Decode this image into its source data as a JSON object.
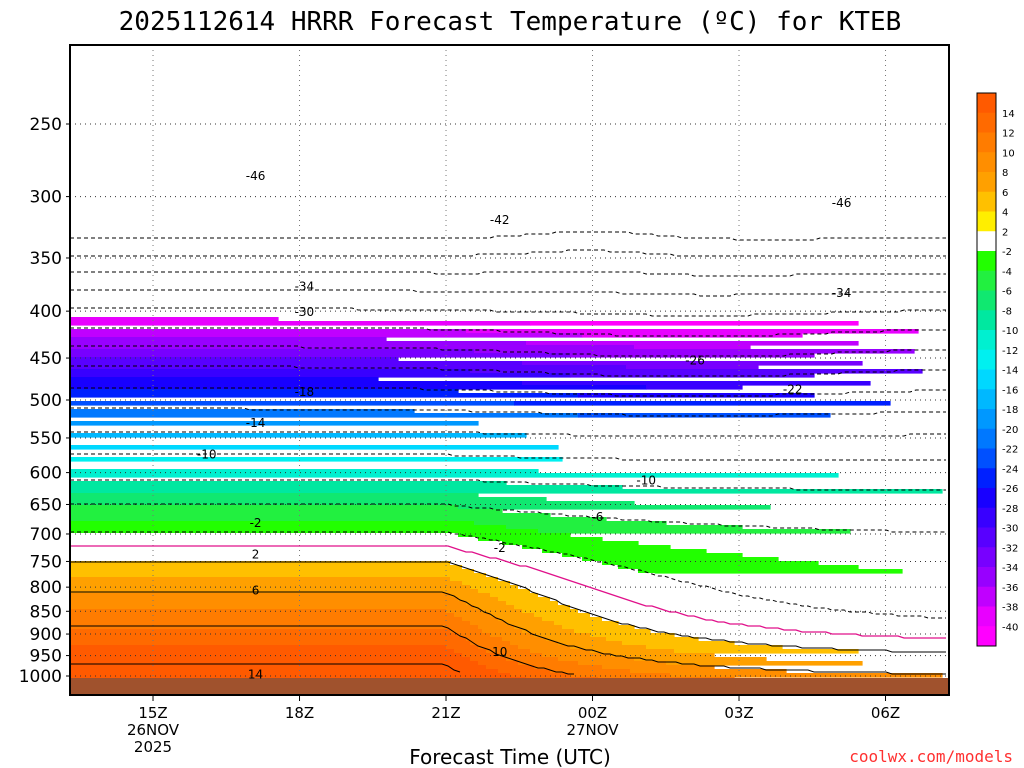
{
  "chart_data": {
    "type": "heatmap",
    "title": "2025112614 HRRR Forecast Temperature (ºC) for KTEB",
    "xlabel": "Forecast Time (UTC)",
    "ylabel": "",
    "credit": "coolwx.com/models",
    "y_ticks": [
      "250",
      "300",
      "350",
      "400",
      "450",
      "500",
      "550",
      "600",
      "650",
      "700",
      "750",
      "800",
      "850",
      "900",
      "950",
      "1000"
    ],
    "y_tick_values": [
      250,
      300,
      350,
      400,
      450,
      500,
      550,
      600,
      650,
      700,
      750,
      800,
      850,
      900,
      950,
      1000
    ],
    "x_ticks": [
      {
        "hour": 15,
        "label": "15Z",
        "sub1": "26NOV",
        "sub2": "2025"
      },
      {
        "hour": 18,
        "label": "18Z",
        "sub1": "",
        "sub2": ""
      },
      {
        "hour": 21,
        "label": "21Z",
        "sub1": "",
        "sub2": ""
      },
      {
        "hour": 24,
        "label": "00Z",
        "sub1": "27NOV",
        "sub2": ""
      },
      {
        "hour": 27,
        "label": "03Z",
        "sub1": "",
        "sub2": ""
      },
      {
        "hour": 30,
        "label": "06Z",
        "sub1": "",
        "sub2": ""
      }
    ],
    "colorbar_ticks": [
      "14",
      "12",
      "10",
      "8",
      "6",
      "4",
      "2",
      "-2",
      "-4",
      "-6",
      "-8",
      "-10",
      "-12",
      "-14",
      "-16",
      "-18",
      "-20",
      "-22",
      "-24",
      "-26",
      "-28",
      "-30",
      "-32",
      "-34",
      "-36",
      "-38",
      "-40"
    ],
    "colorbar_colors": [
      "#ff5a00",
      "#ff6a00",
      "#ff7c00",
      "#ff8e00",
      "#ffa000",
      "#ffc000",
      "#ffee00",
      "#ffffff",
      "#22ff00",
      "#22f040",
      "#10e870",
      "#00e8a0",
      "#00f0d0",
      "#00f0f0",
      "#00d8ff",
      "#00b8ff",
      "#0098ff",
      "#0078ff",
      "#0050ff",
      "#0020ff",
      "#1800ff",
      "#3800ff",
      "#5800ff",
      "#7800ff",
      "#9800ff",
      "#c000ff",
      "#e800ff",
      "#ff00ff"
    ],
    "contour_labels": [
      {
        "text": "-46",
        "hour": 17.1,
        "pres": 285
      },
      {
        "text": "-42",
        "hour": 22.1,
        "pres": 318
      },
      {
        "text": "-46",
        "hour": 29.1,
        "pres": 305
      },
      {
        "text": "-34",
        "hour": 18.1,
        "pres": 376
      },
      {
        "text": "-34",
        "hour": 29.1,
        "pres": 382
      },
      {
        "text": "-30",
        "hour": 18.1,
        "pres": 401
      },
      {
        "text": "-26",
        "hour": 26.1,
        "pres": 453
      },
      {
        "text": "-22",
        "hour": 28.1,
        "pres": 487
      },
      {
        "text": "-18",
        "hour": 18.1,
        "pres": 490
      },
      {
        "text": "-14",
        "hour": 17.1,
        "pres": 530
      },
      {
        "text": "-10",
        "hour": 16.1,
        "pres": 573
      },
      {
        "text": "-10",
        "hour": 25.1,
        "pres": 612
      },
      {
        "text": "-6",
        "hour": 24.1,
        "pres": 671
      },
      {
        "text": "-2",
        "hour": 17.1,
        "pres": 681
      },
      {
        "text": "-2",
        "hour": 22.1,
        "pres": 725
      },
      {
        "text": "2",
        "hour": 17.1,
        "pres": 737
      },
      {
        "text": "6",
        "hour": 17.1,
        "pres": 807
      },
      {
        "text": "10",
        "hour": 22.1,
        "pres": 942
      },
      {
        "text": "14",
        "hour": 17.1,
        "pres": 996
      }
    ]
  }
}
